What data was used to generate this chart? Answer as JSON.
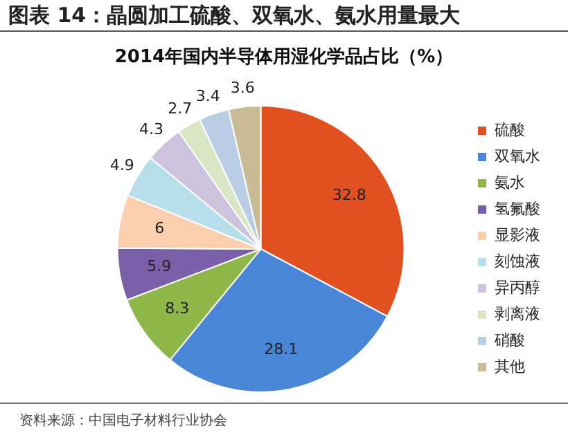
{
  "chart_data": {
    "type": "pie",
    "title": "图表 14：晶圆加工硫酸、双氧水、氨水用量最大",
    "subtitle": "2014年国内半导体用湿化学品占比（%）",
    "categories": [
      "硫酸",
      "双氧水",
      "氨水",
      "氢氟酸",
      "显影液",
      "刻蚀液",
      "异丙醇",
      "剥离液",
      "硝酸",
      "其他"
    ],
    "values": [
      32.8,
      28.1,
      8.3,
      5.9,
      6,
      4.9,
      4.3,
      2.7,
      3.4,
      3.6
    ],
    "colors": [
      "#e2501f",
      "#4a86d8",
      "#8db848",
      "#7a5ea8",
      "#fbcfae",
      "#b6dfeb",
      "#cdc3de",
      "#d9e6c4",
      "#b9cde5",
      "#c9bb96"
    ],
    "data_labels": true,
    "legend": "right",
    "annotations": [
      "资料来源：中国电子材料行业协会"
    ]
  }
}
